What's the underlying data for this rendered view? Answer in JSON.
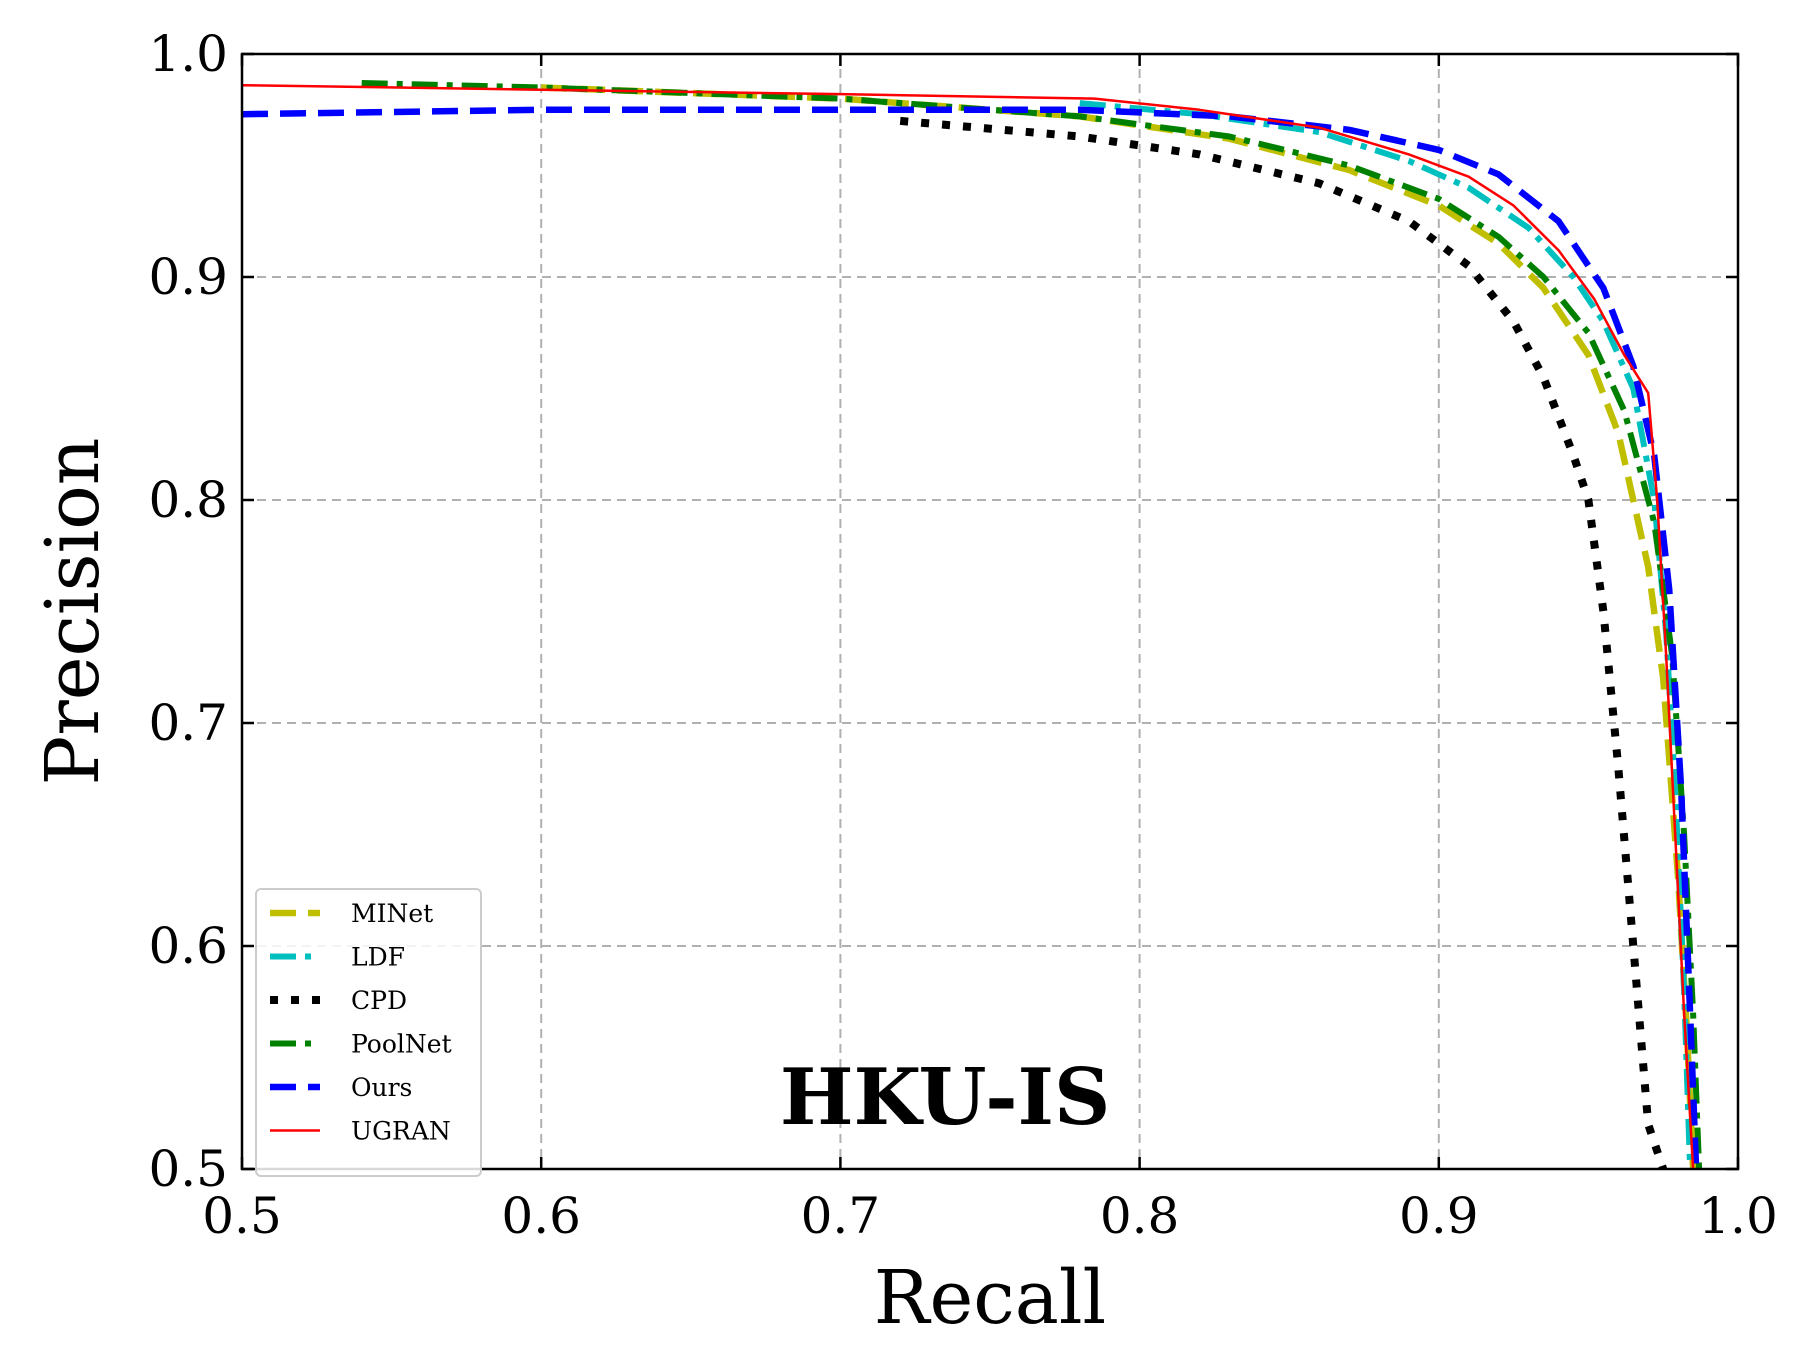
{
  "chart_data": {
    "type": "line",
    "title": "",
    "xlabel": "Recall",
    "ylabel": "Precision",
    "xlim": [
      0.5,
      1.0
    ],
    "ylim": [
      0.5,
      1.0
    ],
    "xticks": [
      "0.5",
      "0.6",
      "0.7",
      "0.8",
      "0.9",
      "1.0"
    ],
    "yticks": [
      "0.5",
      "0.6",
      "0.7",
      "0.8",
      "0.9",
      "1.0"
    ],
    "grid": true,
    "legend_position": "lower-left",
    "annotation": "HKU-IS",
    "series": [
      {
        "name": "MINet",
        "color": "#bfbf00",
        "style": "dashed",
        "x": [
          0.6,
          0.7,
          0.78,
          0.83,
          0.87,
          0.9,
          0.92,
          0.935,
          0.95,
          0.96,
          0.97,
          0.975,
          0.98,
          0.983,
          0.985
        ],
        "y": [
          0.985,
          0.98,
          0.972,
          0.962,
          0.948,
          0.932,
          0.915,
          0.895,
          0.865,
          0.83,
          0.77,
          0.72,
          0.63,
          0.56,
          0.5
        ]
      },
      {
        "name": "LDF",
        "color": "#00bfbf",
        "style": "dash-dot",
        "x": [
          0.78,
          0.82,
          0.86,
          0.89,
          0.91,
          0.93,
          0.945,
          0.955,
          0.965,
          0.972,
          0.976,
          0.979,
          0.982,
          0.984
        ],
        "y": [
          0.978,
          0.973,
          0.965,
          0.952,
          0.94,
          0.922,
          0.9,
          0.88,
          0.85,
          0.8,
          0.74,
          0.67,
          0.58,
          0.5
        ]
      },
      {
        "name": "CPD",
        "color": "#000000",
        "style": "dotted",
        "x": [
          0.72,
          0.78,
          0.82,
          0.86,
          0.89,
          0.91,
          0.925,
          0.935,
          0.945,
          0.95,
          0.955,
          0.96,
          0.965,
          0.97,
          0.975
        ],
        "y": [
          0.97,
          0.963,
          0.955,
          0.942,
          0.925,
          0.905,
          0.88,
          0.855,
          0.82,
          0.8,
          0.75,
          0.68,
          0.6,
          0.52,
          0.5
        ]
      },
      {
        "name": "PoolNet",
        "color": "#008000",
        "style": "dash-dot",
        "x": [
          0.54,
          0.6,
          0.7,
          0.78,
          0.83,
          0.87,
          0.9,
          0.92,
          0.935,
          0.95,
          0.962,
          0.972,
          0.978,
          0.982,
          0.985,
          0.987
        ],
        "y": [
          0.987,
          0.985,
          0.98,
          0.972,
          0.963,
          0.95,
          0.935,
          0.918,
          0.9,
          0.875,
          0.84,
          0.79,
          0.73,
          0.65,
          0.57,
          0.5
        ]
      },
      {
        "name": "Ours",
        "color": "#0000ff",
        "style": "dashed",
        "x": [
          0.5,
          0.6,
          0.7,
          0.78,
          0.83,
          0.87,
          0.9,
          0.92,
          0.94,
          0.955,
          0.965,
          0.972,
          0.977,
          0.981,
          0.984,
          0.986
        ],
        "y": [
          0.973,
          0.975,
          0.975,
          0.975,
          0.972,
          0.966,
          0.957,
          0.946,
          0.925,
          0.895,
          0.86,
          0.82,
          0.76,
          0.67,
          0.57,
          0.5
        ]
      },
      {
        "name": "UGRAN",
        "color": "#ff0000",
        "style": "solid",
        "x": [
          0.5,
          0.6,
          0.7,
          0.785,
          0.82,
          0.86,
          0.89,
          0.91,
          0.925,
          0.94,
          0.952,
          0.962,
          0.97,
          0.973,
          0.976,
          0.979,
          0.982,
          0.985
        ],
        "y": [
          0.986,
          0.984,
          0.982,
          0.98,
          0.975,
          0.967,
          0.955,
          0.945,
          0.932,
          0.912,
          0.89,
          0.865,
          0.848,
          0.8,
          0.73,
          0.65,
          0.57,
          0.5
        ]
      }
    ]
  }
}
